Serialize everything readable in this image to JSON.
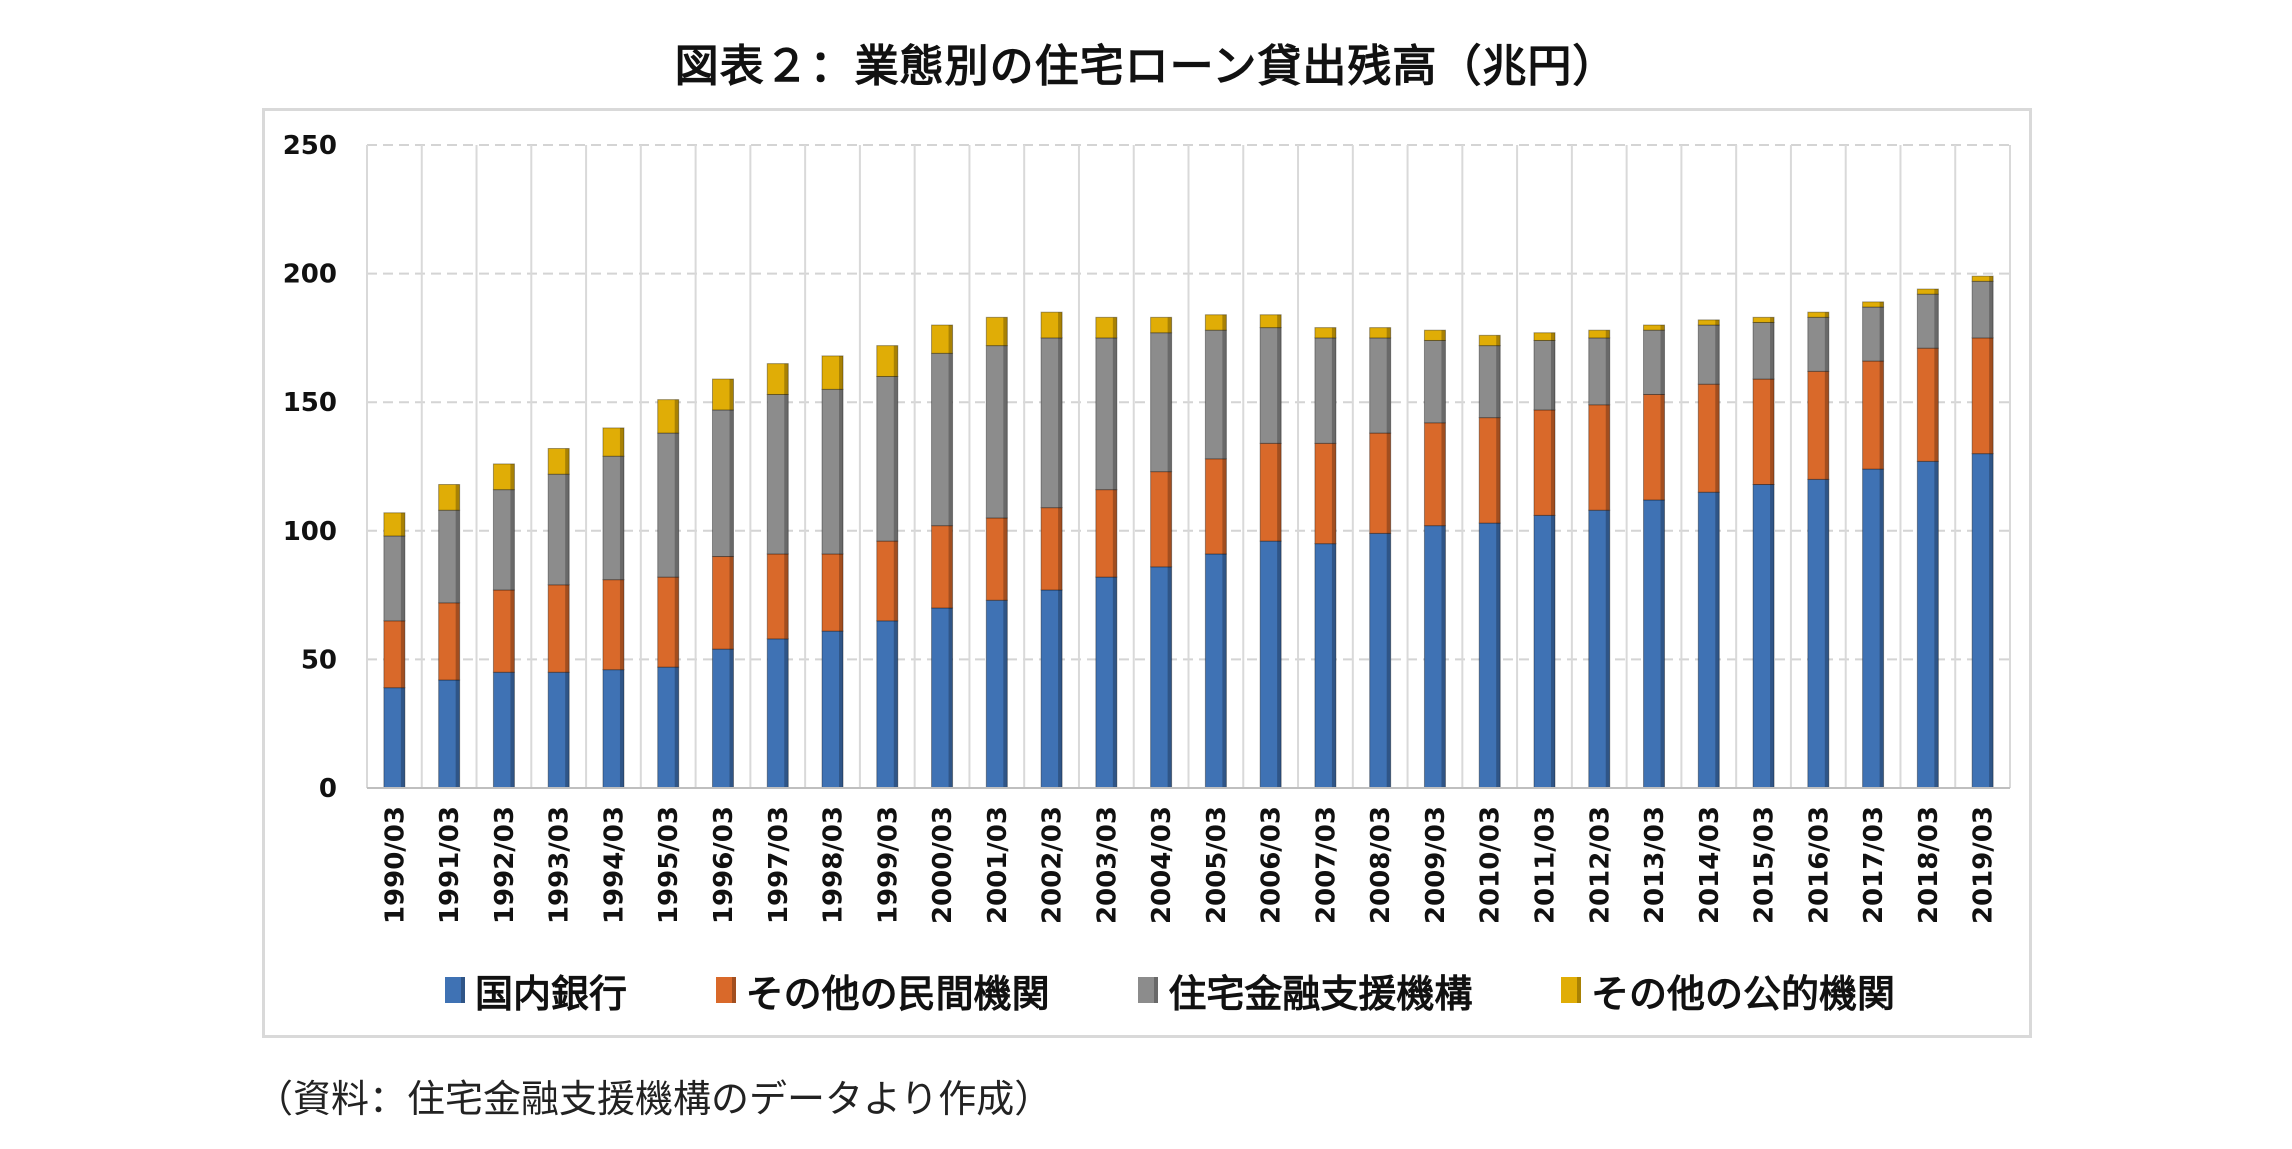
{
  "title": "図表２：業態別の住宅ローン貸出残高（兆円）",
  "source": "（資料：住宅金融支援機構のデータより作成）",
  "chart_data": {
    "type": "bar",
    "stacked": true,
    "categories": [
      "1990/03",
      "1991/03",
      "1992/03",
      "1993/03",
      "1994/03",
      "1995/03",
      "1996/03",
      "1997/03",
      "1998/03",
      "1999/03",
      "2000/03",
      "2001/03",
      "2002/03",
      "2003/03",
      "2004/03",
      "2005/03",
      "2006/03",
      "2007/03",
      "2008/03",
      "2009/03",
      "2010/03",
      "2011/03",
      "2012/03",
      "2013/03",
      "2014/03",
      "2015/03",
      "2016/03",
      "2017/03",
      "2018/03",
      "2019/03"
    ],
    "series": [
      {
        "name": "国内銀行",
        "color": "#3f72b4",
        "values": [
          39,
          42,
          45,
          45,
          46,
          47,
          54,
          58,
          61,
          65,
          70,
          73,
          77,
          82,
          86,
          91,
          96,
          95,
          99,
          102,
          103,
          106,
          108,
          112,
          115,
          118,
          120,
          124,
          127,
          130
        ]
      },
      {
        "name": "その他の民間機関",
        "color": "#d9692a",
        "values": [
          26,
          30,
          32,
          34,
          35,
          35,
          36,
          33,
          30,
          31,
          32,
          32,
          32,
          34,
          37,
          37,
          38,
          39,
          39,
          40,
          41,
          41,
          41,
          41,
          42,
          41,
          42,
          42,
          44,
          45
        ]
      },
      {
        "name": "住宅金融支援機構",
        "color": "#8c8c8c",
        "values": [
          33,
          36,
          39,
          43,
          48,
          56,
          57,
          62,
          64,
          64,
          67,
          67,
          66,
          59,
          54,
          50,
          45,
          41,
          37,
          32,
          28,
          27,
          26,
          25,
          23,
          22,
          21,
          21,
          21,
          22
        ]
      },
      {
        "name": "その他の公的機関",
        "color": "#e0ad06",
        "values": [
          9,
          10,
          10,
          10,
          11,
          13,
          12,
          12,
          13,
          12,
          11,
          11,
          10,
          8,
          6,
          6,
          5,
          4,
          4,
          4,
          4,
          3,
          3,
          2,
          2,
          2,
          2,
          2,
          2,
          2
        ]
      }
    ],
    "ylim": [
      0,
      250
    ],
    "yticks": [
      0,
      50,
      100,
      150,
      200,
      250
    ],
    "grid": true,
    "legend_position": "bottom"
  }
}
